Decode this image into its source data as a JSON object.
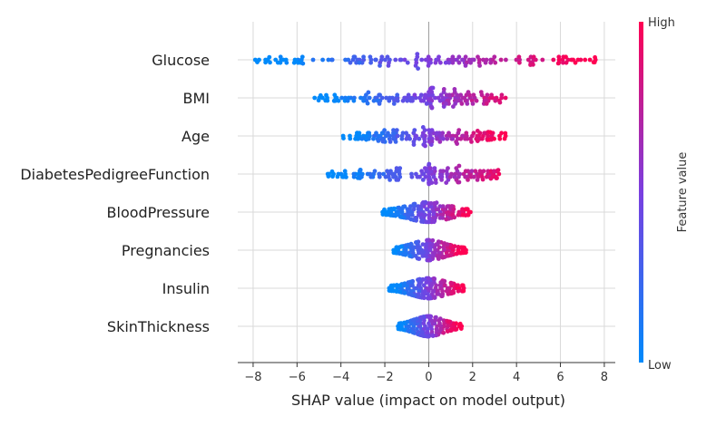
{
  "chart_data": {
    "type": "scatter",
    "title": "",
    "xlabel": "SHAP value (impact on model output)",
    "ylabel": "",
    "xlim": [
      -8.7,
      8.5
    ],
    "xticks": [
      -8,
      -6,
      -4,
      -2,
      0,
      2,
      4,
      6,
      8
    ],
    "xtick_labels": [
      "−8",
      "−6",
      "−4",
      "−2",
      "0",
      "2",
      "4",
      "6",
      "8"
    ],
    "grid": true,
    "features": [
      {
        "name": "Glucose",
        "min": -7.9,
        "max": 7.6
      },
      {
        "name": "BMI",
        "min": -5.2,
        "max": 3.5
      },
      {
        "name": "Age",
        "min": -3.9,
        "max": 3.5
      },
      {
        "name": "DiabetesPedigreeFunction",
        "min": -4.6,
        "max": 3.2
      },
      {
        "name": "BloodPressure",
        "min": -2.1,
        "max": 1.9
      },
      {
        "name": "Pregnancies",
        "min": -1.6,
        "max": 1.7
      },
      {
        "name": "Insulin",
        "min": -1.8,
        "max": 1.6
      },
      {
        "name": "SkinThickness",
        "min": -1.4,
        "max": 1.5
      }
    ],
    "colorbar": {
      "label": "Feature value",
      "high": "High",
      "low": "Low",
      "color_low": "#008afb",
      "color_mid": "#7a3fe0",
      "color_high": "#ff0052"
    }
  }
}
